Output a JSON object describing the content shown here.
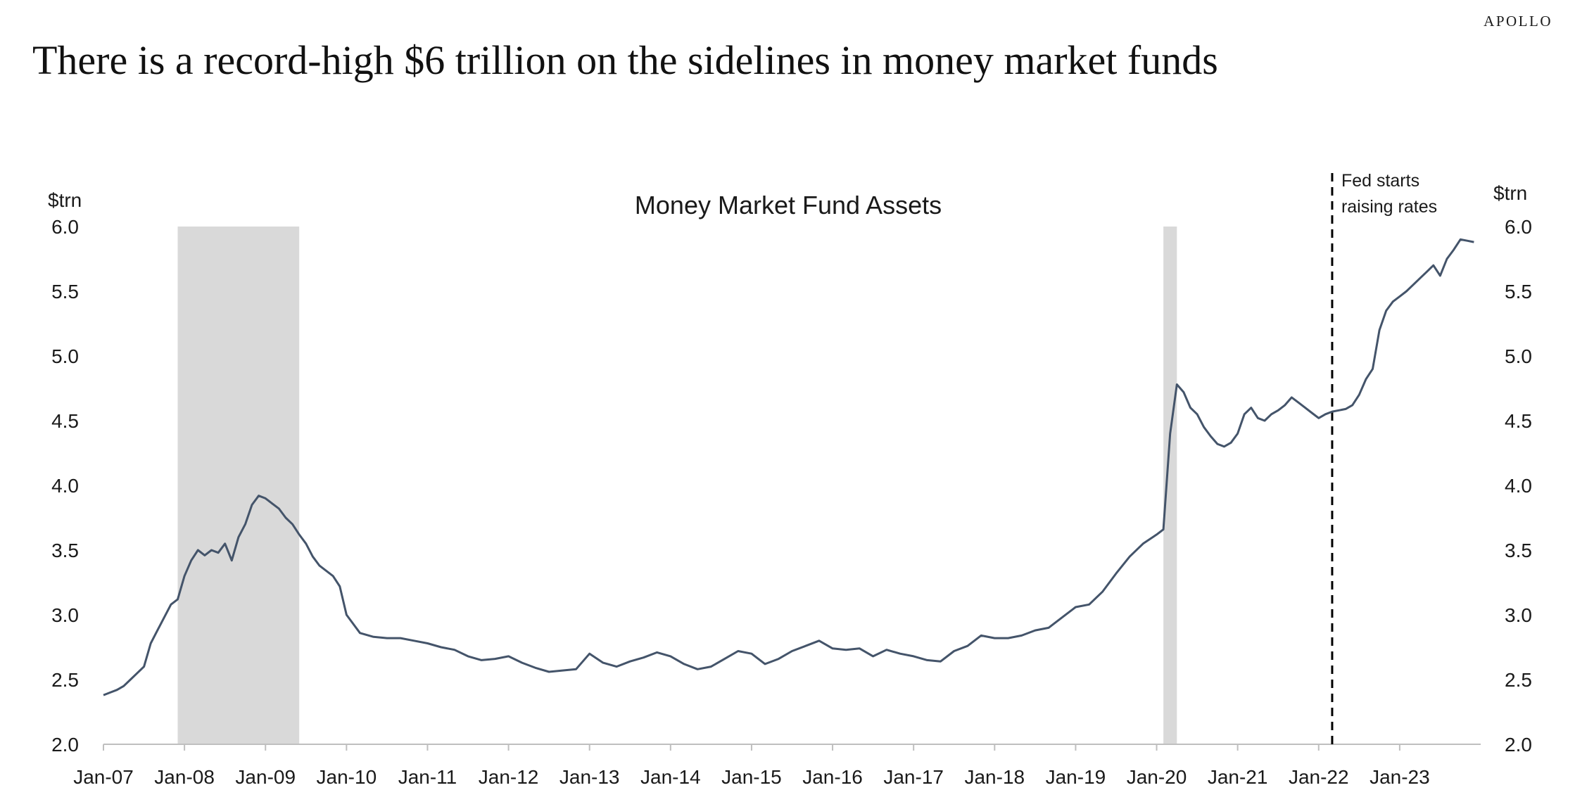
{
  "brand": "APOLLO",
  "headline": "There is a record-high $6 trillion on the sidelines in money market funds",
  "colors": {
    "line": "#44546A",
    "recession": "#D9D9D9",
    "axis": "#BFBFBF",
    "annotation": "#000000"
  },
  "chart_data": {
    "type": "line",
    "title": "Money Market Fund Assets",
    "ylabel_left": "$trn",
    "ylabel_right": "$trn",
    "ylim": [
      2.0,
      6.0
    ],
    "yticks": [
      "2.0",
      "2.5",
      "3.0",
      "3.5",
      "4.0",
      "4.5",
      "5.0",
      "5.5",
      "6.0"
    ],
    "xlim": [
      "2007-01",
      "2024-01"
    ],
    "xticks": [
      "Jan-07",
      "Jan-08",
      "Jan-09",
      "Jan-10",
      "Jan-11",
      "Jan-12",
      "Jan-13",
      "Jan-14",
      "Jan-15",
      "Jan-16",
      "Jan-17",
      "Jan-18",
      "Jan-19",
      "Jan-20",
      "Jan-21",
      "Jan-22",
      "Jan-23"
    ],
    "grid": false,
    "shaded_periods": [
      {
        "start": "2007-12",
        "end": "2009-06"
      },
      {
        "start": "2020-02",
        "end": "2020-04"
      }
    ],
    "annotations": [
      {
        "date": "2022-03",
        "label_lines": [
          "Fed starts",
          "raising rates"
        ],
        "style": "dashed-vertical"
      }
    ],
    "series": [
      {
        "x": [
          "2007-01",
          "2007-02",
          "2007-03",
          "2007-04",
          "2007-05",
          "2007-06",
          "2007-07",
          "2007-08",
          "2007-09",
          "2007-10",
          "2007-11",
          "2007-12",
          "2008-01",
          "2008-02",
          "2008-03",
          "2008-04",
          "2008-05",
          "2008-06",
          "2008-07",
          "2008-08",
          "2008-09",
          "2008-10",
          "2008-11",
          "2008-12",
          "2009-01",
          "2009-02",
          "2009-03",
          "2009-04",
          "2009-05",
          "2009-06",
          "2009-07",
          "2009-08",
          "2009-09",
          "2009-10",
          "2009-11",
          "2009-12",
          "2010-01",
          "2010-03",
          "2010-05",
          "2010-07",
          "2010-09",
          "2010-11",
          "2011-01",
          "2011-03",
          "2011-05",
          "2011-07",
          "2011-09",
          "2011-11",
          "2012-01",
          "2012-03",
          "2012-05",
          "2012-07",
          "2012-09",
          "2012-11",
          "2013-01",
          "2013-03",
          "2013-05",
          "2013-07",
          "2013-09",
          "2013-11",
          "2014-01",
          "2014-03",
          "2014-05",
          "2014-07",
          "2014-09",
          "2014-11",
          "2015-01",
          "2015-03",
          "2015-05",
          "2015-07",
          "2015-09",
          "2015-11",
          "2016-01",
          "2016-03",
          "2016-05",
          "2016-07",
          "2016-09",
          "2016-11",
          "2017-01",
          "2017-03",
          "2017-05",
          "2017-07",
          "2017-09",
          "2017-11",
          "2018-01",
          "2018-03",
          "2018-05",
          "2018-07",
          "2018-09",
          "2018-11",
          "2019-01",
          "2019-03",
          "2019-05",
          "2019-07",
          "2019-09",
          "2019-11",
          "2020-01",
          "2020-02",
          "2020-03",
          "2020-04",
          "2020-05",
          "2020-06",
          "2020-07",
          "2020-08",
          "2020-09",
          "2020-10",
          "2020-11",
          "2020-12",
          "2021-01",
          "2021-02",
          "2021-03",
          "2021-04",
          "2021-05",
          "2021-06",
          "2021-07",
          "2021-08",
          "2021-09",
          "2021-10",
          "2021-11",
          "2021-12",
          "2022-01",
          "2022-02",
          "2022-03",
          "2022-04",
          "2022-05",
          "2022-06",
          "2022-07",
          "2022-08",
          "2022-09",
          "2022-10",
          "2022-11",
          "2022-12",
          "2023-01",
          "2023-02",
          "2023-03",
          "2023-04",
          "2023-05",
          "2023-06",
          "2023-07",
          "2023-08",
          "2023-09",
          "2023-10",
          "2023-11",
          "2023-12"
        ],
        "values": [
          2.38,
          2.4,
          2.42,
          2.45,
          2.5,
          2.55,
          2.6,
          2.78,
          2.88,
          2.98,
          3.08,
          3.12,
          3.3,
          3.42,
          3.5,
          3.46,
          3.5,
          3.48,
          3.55,
          3.42,
          3.6,
          3.7,
          3.85,
          3.92,
          3.9,
          3.86,
          3.82,
          3.75,
          3.7,
          3.62,
          3.55,
          3.45,
          3.38,
          3.34,
          3.3,
          3.22,
          3.0,
          2.86,
          2.83,
          2.82,
          2.82,
          2.8,
          2.78,
          2.75,
          2.73,
          2.68,
          2.65,
          2.66,
          2.68,
          2.63,
          2.59,
          2.56,
          2.57,
          2.58,
          2.7,
          2.63,
          2.6,
          2.64,
          2.67,
          2.71,
          2.68,
          2.62,
          2.58,
          2.6,
          2.66,
          2.72,
          2.7,
          2.62,
          2.66,
          2.72,
          2.76,
          2.8,
          2.74,
          2.73,
          2.74,
          2.68,
          2.73,
          2.7,
          2.68,
          2.65,
          2.64,
          2.72,
          2.76,
          2.84,
          2.82,
          2.82,
          2.84,
          2.88,
          2.9,
          2.98,
          3.06,
          3.08,
          3.18,
          3.32,
          3.45,
          3.55,
          3.62,
          3.66,
          4.4,
          4.78,
          4.72,
          4.6,
          4.55,
          4.45,
          4.38,
          4.32,
          4.3,
          4.33,
          4.4,
          4.55,
          4.6,
          4.52,
          4.5,
          4.55,
          4.58,
          4.62,
          4.68,
          4.64,
          4.6,
          4.56,
          4.52,
          4.55,
          4.57,
          4.58,
          4.59,
          4.62,
          4.7,
          4.82,
          4.9,
          5.2,
          5.35,
          5.42,
          5.46,
          5.5,
          5.55,
          5.6,
          5.65,
          5.7,
          5.62,
          5.75,
          5.82,
          5.9,
          5.89,
          5.88
        ]
      }
    ]
  }
}
